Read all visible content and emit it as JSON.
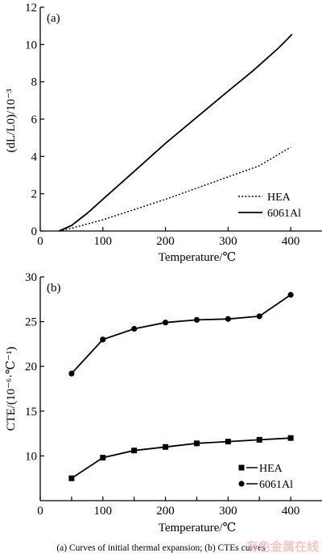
{
  "caption": "(a) Curves of initial thermal expansion;    (b) CTEs curves",
  "watermark": "有色金属在线",
  "chart_data": [
    {
      "panel": "(a)",
      "type": "line",
      "xlabel": "Temperature/℃",
      "ylabel": "(dL/L0)/10⁻³",
      "xlim": [
        0,
        450
      ],
      "ylim": [
        0,
        12
      ],
      "xticks": [
        0,
        100,
        200,
        300,
        400
      ],
      "yticks": [
        0,
        2,
        4,
        6,
        8,
        10,
        12
      ],
      "legend_position": "bottom-right",
      "series": [
        {
          "name": "HEA",
          "style": "dotted",
          "x": [
            30,
            50,
            100,
            150,
            200,
            250,
            300,
            350,
            400
          ],
          "y": [
            0.0,
            0.15,
            0.6,
            1.15,
            1.7,
            2.3,
            2.9,
            3.5,
            4.5
          ]
        },
        {
          "name": "6061Al",
          "style": "solid",
          "x": [
            30,
            50,
            75,
            100,
            150,
            200,
            250,
            300,
            340,
            360,
            380,
            395,
            402
          ],
          "y": [
            0.0,
            0.3,
            0.95,
            1.7,
            3.2,
            4.7,
            6.1,
            7.5,
            8.6,
            9.2,
            9.8,
            10.3,
            10.55
          ]
        }
      ]
    },
    {
      "panel": "(b)",
      "type": "line",
      "xlabel": "Temperature/℃",
      "ylabel": "CTE/(10⁻⁶·℃⁻¹)",
      "xlim": [
        0,
        450
      ],
      "ylim": [
        5,
        30
      ],
      "xticks": [
        0,
        50,
        100,
        150,
        200,
        250,
        300,
        350,
        400
      ],
      "xticklabels": [
        "0",
        "",
        "100",
        "",
        "200",
        "",
        "300",
        "",
        "400"
      ],
      "yticks": [
        10,
        15,
        20,
        25,
        30
      ],
      "legend_position": "bottom-right",
      "series": [
        {
          "name": "HEA",
          "marker": "square",
          "x": [
            50,
            100,
            150,
            200,
            250,
            300,
            350,
            400
          ],
          "y": [
            7.5,
            9.8,
            10.6,
            11.0,
            11.4,
            11.6,
            11.8,
            12.0
          ]
        },
        {
          "name": "6061Al",
          "marker": "circle",
          "x": [
            50,
            100,
            150,
            200,
            250,
            300,
            350,
            400
          ],
          "y": [
            19.2,
            23.0,
            24.2,
            24.9,
            25.2,
            25.3,
            25.6,
            28.0
          ]
        }
      ]
    }
  ]
}
